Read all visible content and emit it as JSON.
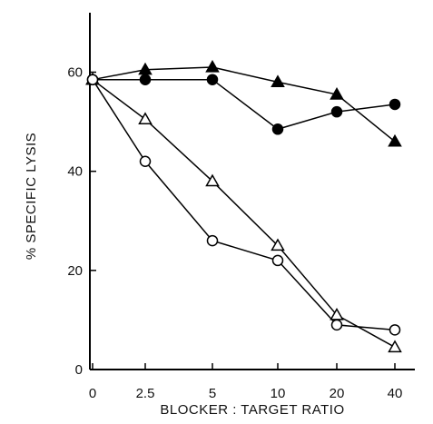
{
  "chart_data": {
    "type": "line",
    "title": "",
    "xlabel": "BLOCKER : TARGET RATIO",
    "ylabel": "% SPECIFIC LYSIS",
    "x_categories": [
      "0",
      "2.5",
      "5",
      "10",
      "20",
      "40"
    ],
    "ylim": [
      0,
      72
    ],
    "yticks": [
      0,
      20,
      40,
      60
    ],
    "ytick_labels": [
      "0",
      "20",
      "40",
      "60"
    ],
    "grid": false,
    "legend": "none",
    "series": [
      {
        "marker": "filled-triangle",
        "values": [
          58.5,
          60.5,
          61,
          58,
          55.5,
          46
        ]
      },
      {
        "marker": "filled-circle",
        "values": [
          58.5,
          58.5,
          58.5,
          48.5,
          52,
          53.5
        ]
      },
      {
        "marker": "open-triangle",
        "values": [
          58.5,
          50.5,
          38,
          25,
          11,
          4.5
        ]
      },
      {
        "marker": "open-circle",
        "values": [
          58.5,
          42,
          26,
          22,
          9,
          8
        ]
      }
    ]
  }
}
